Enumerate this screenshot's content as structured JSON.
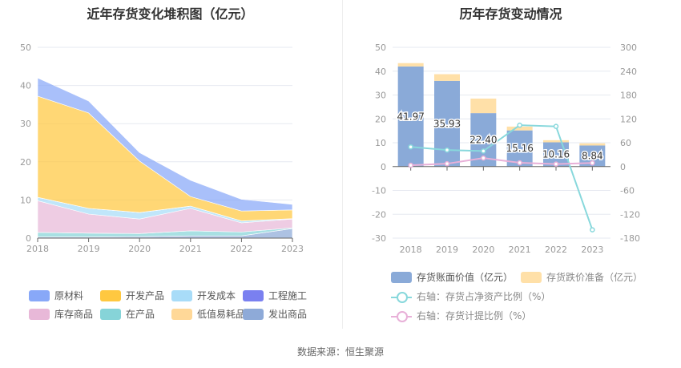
{
  "left_title": "近年存货变化堆积图（亿元）",
  "right_title": "历年存货变动情况",
  "footer": "数据来源：恒生聚源",
  "chart_data": [
    {
      "type": "area",
      "stacked": true,
      "title": "近年存货变化堆积图（亿元）",
      "x": [
        "2018",
        "2019",
        "2020",
        "2021",
        "2022",
        "2023"
      ],
      "ylim": [
        0,
        50
      ],
      "yticks": [
        0,
        10,
        20,
        30,
        40,
        50
      ],
      "grid": true,
      "legend_position": "bottom",
      "series": [
        {
          "name": "发出商品",
          "color": "#8eaad8",
          "values": [
            0.3,
            0.3,
            0.4,
            0.6,
            0.6,
            2.5
          ]
        },
        {
          "name": "在产品",
          "color": "#86d4d8",
          "values": [
            1.2,
            1.0,
            0.8,
            1.3,
            1.0,
            0.2
          ]
        },
        {
          "name": "库存商品",
          "color": "#e8b8d8",
          "values": [
            8.3,
            5.0,
            3.8,
            5.9,
            2.4,
            2.3
          ]
        },
        {
          "name": "开发成本",
          "color": "#a8dcf8",
          "values": [
            0.9,
            1.5,
            1.7,
            0.6,
            0.5,
            0.1
          ]
        },
        {
          "name": "工程施工",
          "color": "#7a80f0",
          "values": [
            0,
            0,
            0,
            0,
            0,
            0
          ]
        },
        {
          "name": "低值易耗品",
          "color": "#ffd898",
          "values": [
            0,
            0,
            0,
            0,
            0,
            0
          ]
        },
        {
          "name": "开发产品",
          "color": "#ffc840",
          "values": [
            26.5,
            25.0,
            13.5,
            2.5,
            2.6,
            2.3
          ]
        },
        {
          "name": "原材料",
          "color": "#88a8f8",
          "values": [
            4.77,
            3.13,
            2.2,
            4.26,
            3.06,
            1.44
          ]
        }
      ],
      "legend": [
        "原材料",
        "开发产品",
        "开发成本",
        "工程施工",
        "库存商品",
        "在产品",
        "低值易耗品",
        "发出商品"
      ]
    },
    {
      "type": "bar",
      "stacked": true,
      "title": "历年存货变动情况",
      "x": [
        "2018",
        "2019",
        "2020",
        "2021",
        "2022",
        "2023"
      ],
      "ylim": [
        -30,
        50
      ],
      "yticks": [
        -30,
        -20,
        -10,
        0,
        10,
        20,
        30,
        40,
        50
      ],
      "y2lim": [
        -180,
        300
      ],
      "y2ticks": [
        -180,
        -120,
        -60,
        0,
        60,
        120,
        180,
        240,
        300
      ],
      "grid": true,
      "legend_position": "bottom",
      "series": [
        {
          "name": "存货账面价值（亿元）",
          "type": "bar",
          "axis": "left",
          "color": "#8aaad8",
          "values": [
            41.97,
            35.93,
            22.4,
            15.16,
            10.16,
            8.84
          ],
          "labels": [
            "41.97",
            "35.93",
            "22.40",
            "15.16",
            "10.16",
            "8.84"
          ]
        },
        {
          "name": "存货跌价准备（亿元）",
          "type": "bar",
          "axis": "left",
          "color": "#ffe0a8",
          "values": [
            1.4,
            2.8,
            6.1,
            1.6,
            0.9,
            0.9
          ]
        },
        {
          "name": "右轴：存货占净资产比例（%）",
          "type": "line",
          "axis": "right",
          "color": "#88d8dc",
          "values": [
            49.5,
            41.5,
            39.0,
            104.0,
            101.0,
            -159.0
          ]
        },
        {
          "name": "右轴：存货计提比例（%）",
          "type": "line",
          "axis": "right",
          "color": "#e8b0d8",
          "values": [
            3.2,
            7.2,
            21.4,
            9.5,
            6.4,
            9.2
          ]
        }
      ]
    }
  ]
}
